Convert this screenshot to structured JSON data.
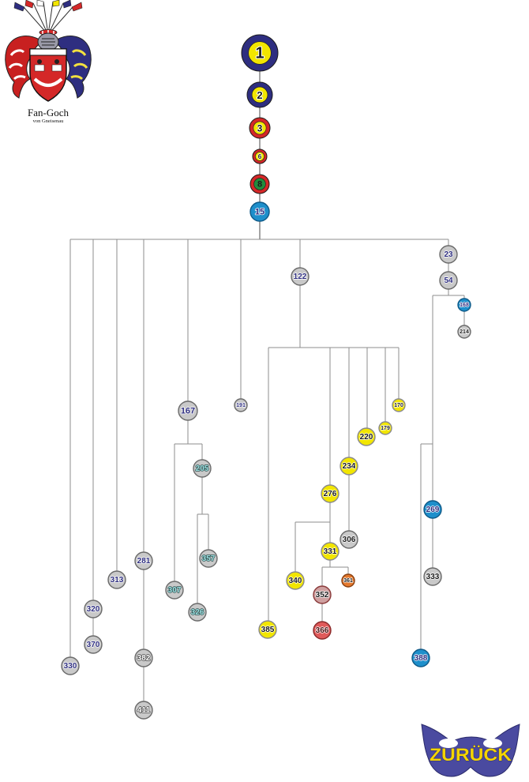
{
  "crest": {
    "icon": "coat-of-arms-icon",
    "name": "Fan-Goch",
    "subtitle": "von Gneisenau"
  },
  "colors": {
    "navy": "#2e2e80",
    "yellow": "#f2e600",
    "red": "#d42828",
    "green": "#1f8c3c",
    "blue": "#1e8fcb",
    "gray": "#c9c9c9",
    "teal": "#9fe0e0",
    "orange": "#e4782c",
    "rose": "#cfa0a0",
    "coral": "#e05a5a",
    "ink": "#1a1a1a",
    "white": "#ffffff",
    "connector": "#8e8e8e"
  },
  "nodes": [
    {
      "label": "1",
      "parent": null,
      "style": "navy"
    },
    {
      "label": "2",
      "parent": "1",
      "style": "navy"
    },
    {
      "label": "3",
      "parent": "2",
      "style": "red"
    },
    {
      "label": "6",
      "parent": "3",
      "style": "red"
    },
    {
      "label": "8",
      "parent": "6",
      "style": "red-green"
    },
    {
      "label": "15",
      "parent": "8",
      "style": "blue"
    },
    {
      "label": "330",
      "parent": "15",
      "style": "gray"
    },
    {
      "label": "320",
      "parent": "15",
      "style": "gray"
    },
    {
      "label": "370",
      "parent": "320",
      "style": "gray"
    },
    {
      "label": "313",
      "parent": "15",
      "style": "gray"
    },
    {
      "label": "281",
      "parent": "15",
      "style": "gray"
    },
    {
      "label": "382",
      "parent": "281",
      "style": "gray-white"
    },
    {
      "label": "411",
      "parent": "382",
      "style": "gray-white"
    },
    {
      "label": "167",
      "parent": "15",
      "style": "gray"
    },
    {
      "label": "307",
      "parent": "167",
      "style": "gray-teal"
    },
    {
      "label": "205",
      "parent": "167",
      "style": "gray-teal"
    },
    {
      "label": "326",
      "parent": "205",
      "style": "gray-teal"
    },
    {
      "label": "357",
      "parent": "205",
      "style": "gray-teal"
    },
    {
      "label": "191",
      "parent": "15",
      "style": "gray"
    },
    {
      "label": "122",
      "parent": "15",
      "style": "gray"
    },
    {
      "label": "385",
      "parent": "122",
      "style": "yellow"
    },
    {
      "label": "276",
      "parent": "122",
      "style": "yellow"
    },
    {
      "label": "340",
      "parent": "276",
      "style": "yellow"
    },
    {
      "label": "331",
      "parent": "276",
      "style": "yellow"
    },
    {
      "label": "352",
      "parent": "331",
      "style": "rose"
    },
    {
      "label": "366",
      "parent": "352",
      "style": "coral"
    },
    {
      "label": "361",
      "parent": "331",
      "style": "orange"
    },
    {
      "label": "234",
      "parent": "122",
      "style": "yellow"
    },
    {
      "label": "306",
      "parent": "234",
      "style": "gray-ink"
    },
    {
      "label": "220",
      "parent": "122",
      "style": "yellow"
    },
    {
      "label": "179",
      "parent": "122",
      "style": "yellow"
    },
    {
      "label": "170",
      "parent": "122",
      "style": "yellow"
    },
    {
      "label": "23",
      "parent": "15",
      "style": "gray"
    },
    {
      "label": "54",
      "parent": "23",
      "style": "gray"
    },
    {
      "label": "168",
      "parent": "54",
      "style": "blue"
    },
    {
      "label": "214",
      "parent": "168",
      "style": "gray-ink"
    },
    {
      "label": "269",
      "parent": "54",
      "style": "blue"
    },
    {
      "label": "333",
      "parent": "269",
      "style": "gray-ink"
    },
    {
      "label": "388",
      "parent": "54",
      "style": "blue"
    }
  ],
  "back_button": {
    "icon": "mask-icon",
    "label": "ZURÜCK"
  }
}
